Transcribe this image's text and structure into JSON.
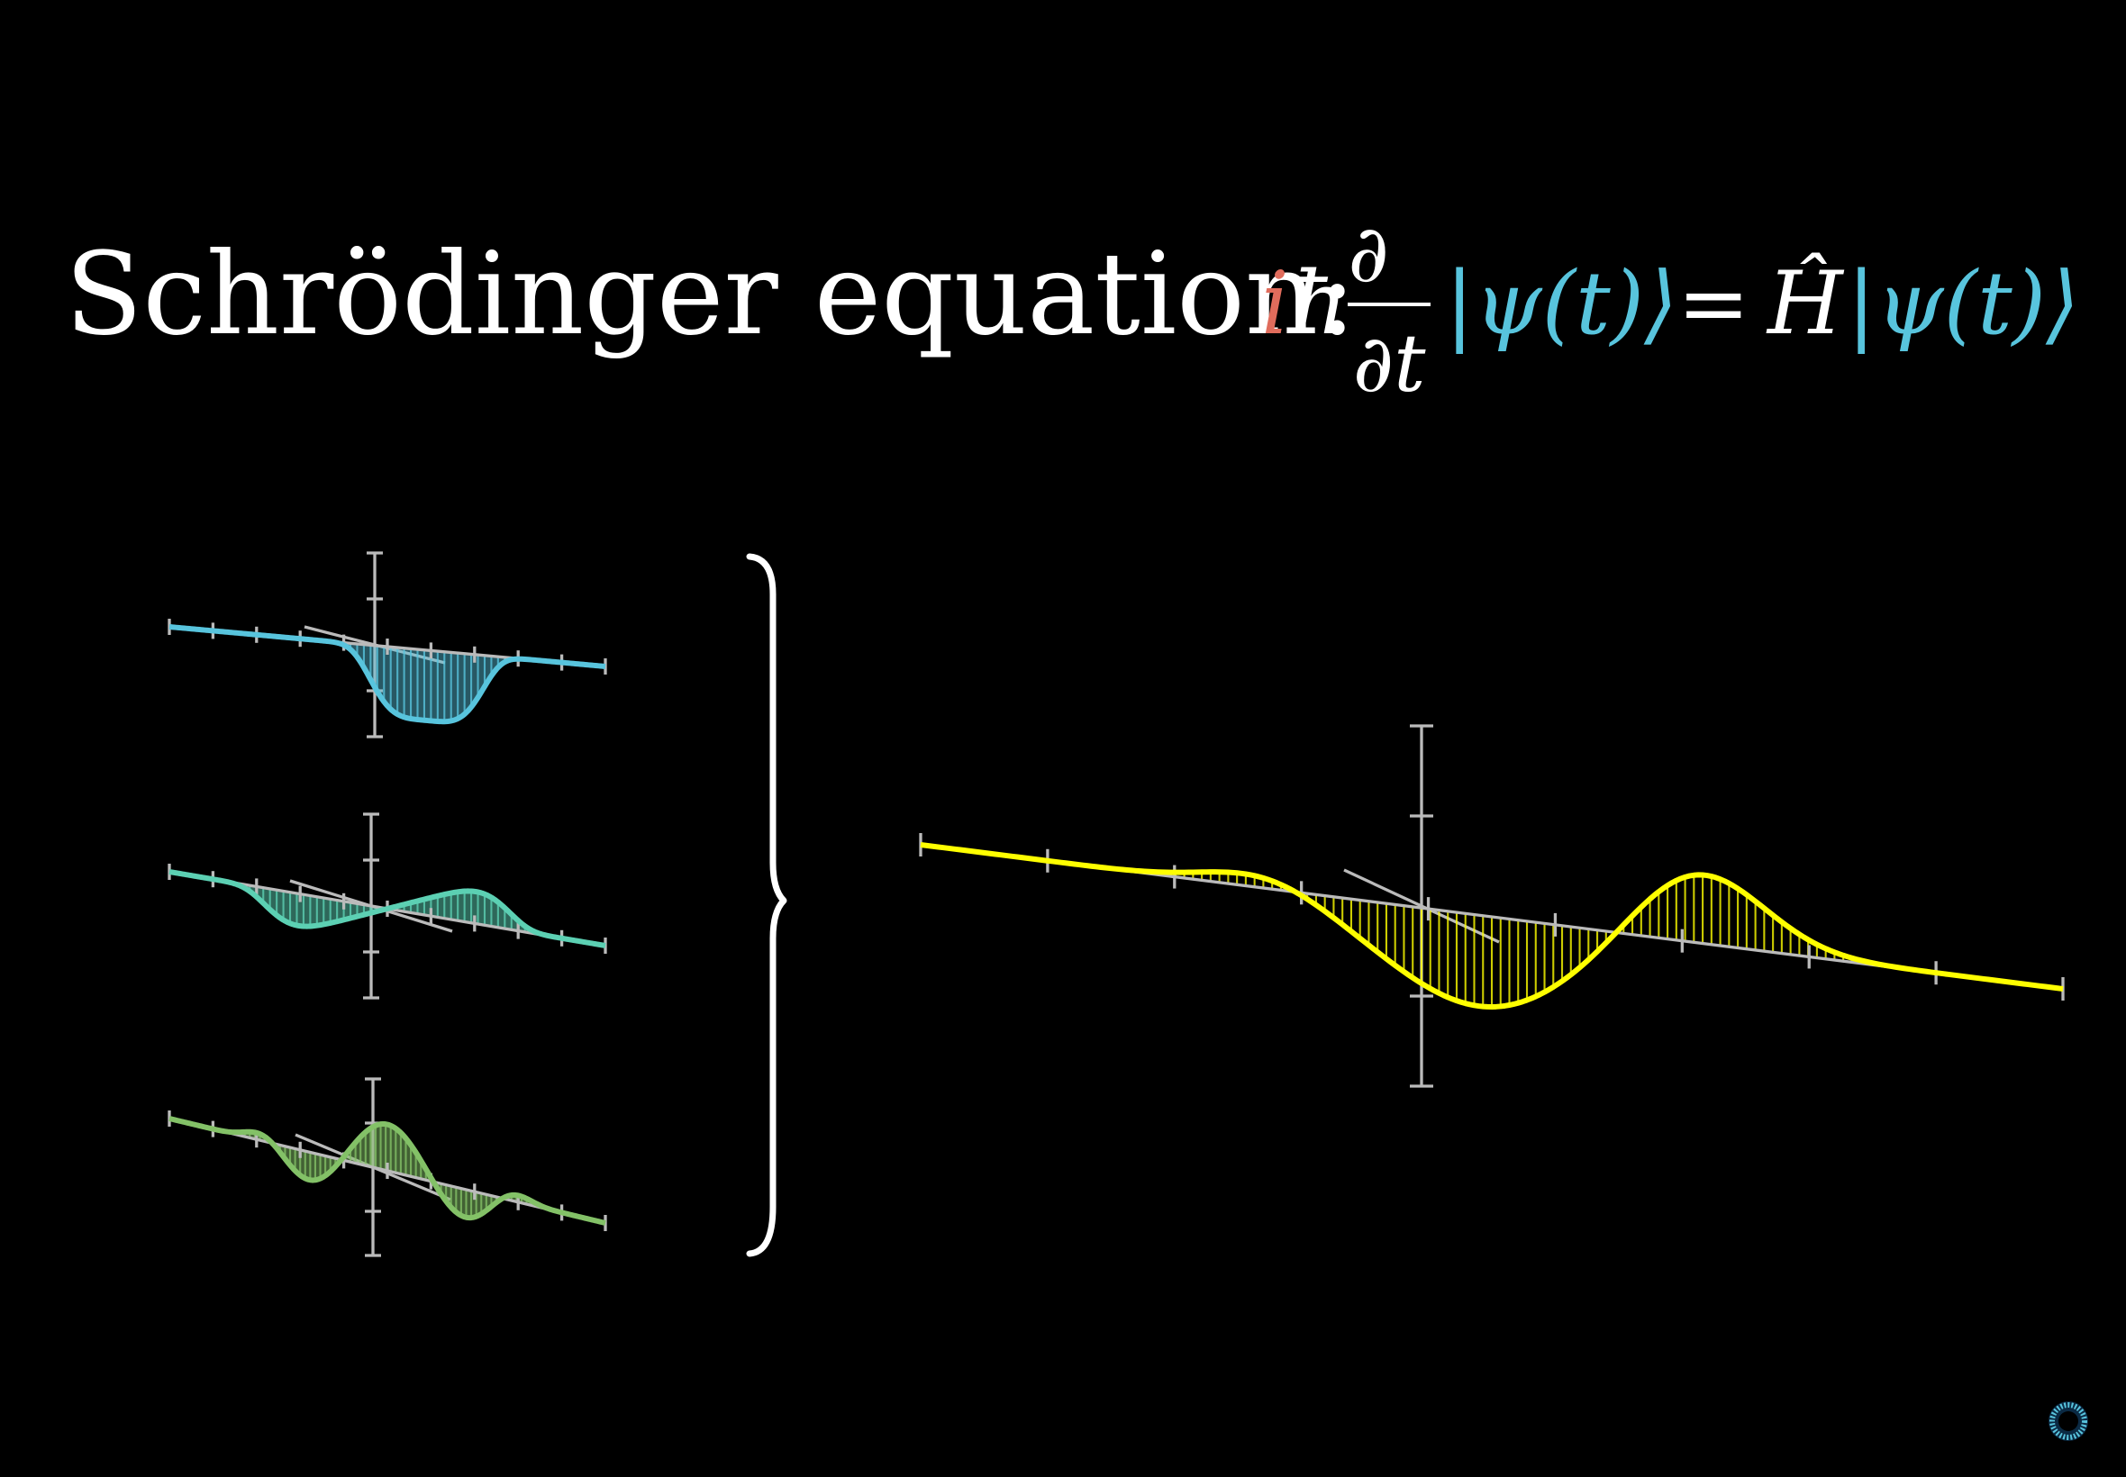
{
  "title": "Schrödinger equation:",
  "equation": {
    "i": "i",
    "hbar": "ħ",
    "partial_top": "∂",
    "partial_bottom": "∂t",
    "ket_left": "|ψ(t)⟩",
    "equals": "=",
    "hamiltonian": "Ĥ",
    "ket_right": "|ψ(t)⟩"
  },
  "colors": {
    "background": "#000000",
    "text": "#ffffff",
    "imaginary_unit": "#e06c5c",
    "ket": "#58c4dd",
    "axis": "#bbbbbb",
    "component_1": "#58c4dd",
    "component_2": "#5cd0b3",
    "component_3": "#83c167",
    "superposition": "#ffff00"
  },
  "icons": {
    "brace": "right-curly-brace",
    "logo": "3b1b-pi-logo"
  }
}
